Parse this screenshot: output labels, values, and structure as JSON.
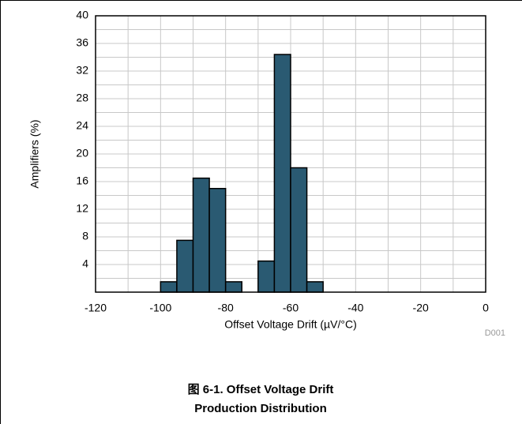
{
  "chart_data": {
    "type": "histogram",
    "bins": [
      -100,
      -95,
      -90,
      -85,
      -80,
      -75,
      -70,
      -65,
      -60,
      -55,
      -50
    ],
    "values": [
      1.5,
      7.5,
      16.5,
      15,
      1.5,
      0,
      4.5,
      34.4,
      18,
      1.5
    ],
    "color": "#2a5a72",
    "xlabel": "Offset Voltage Drift (µV/°C)",
    "ylabel": "Amplifiers (%)",
    "xlim": [
      -120,
      0
    ],
    "xticks": [
      -120,
      -100,
      -80,
      -60,
      -40,
      -20,
      0
    ],
    "xminorticks": [
      -110,
      -90,
      -70,
      -50,
      -30,
      -10
    ],
    "ylim": [
      0,
      40
    ],
    "yticks": [
      4,
      8,
      12,
      16,
      20,
      24,
      28,
      32,
      36,
      40
    ],
    "yminorticks": [
      2,
      6,
      10,
      14,
      18,
      22,
      26,
      30,
      34,
      38
    ],
    "grid": true,
    "code": "D001",
    "caption": [
      "图 6-1. Offset Voltage Drift",
      "Production Distribution"
    ]
  }
}
